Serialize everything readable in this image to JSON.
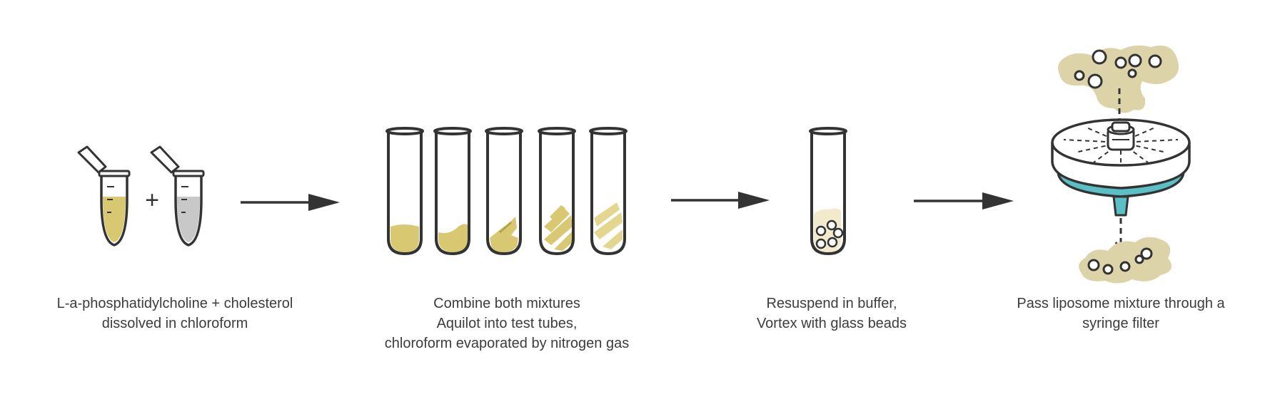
{
  "steps": [
    {
      "caption": [
        "L-a-phosphatidylcholine + cholesterol",
        "dissolved in chloroform"
      ]
    },
    {
      "caption": [
        "Combine both mixtures",
        "Aquilot into test tubes,",
        "chloroform evaporated by nitrogen gas"
      ]
    },
    {
      "caption": [
        "Resuspend in buffer,",
        "Vortex with glass beads"
      ]
    },
    {
      "caption": [
        "Pass liposome mixture through a",
        "syringe filter"
      ]
    }
  ],
  "plus_sign": "+",
  "colors": {
    "stroke": "#333333",
    "lipid_yellow": "#d8c871",
    "lipid_light": "#ece3ae",
    "cholesterol_grey": "#c8c8c8",
    "filter_teal": "#5bbfc6",
    "liposome_beige": "#ddd3a8",
    "bead_fill": "#f3ecd0"
  },
  "icons": [
    "microtube-icon",
    "test-tube-icon",
    "arrow-right-icon",
    "syringe-filter-icon",
    "liposome-icon"
  ]
}
